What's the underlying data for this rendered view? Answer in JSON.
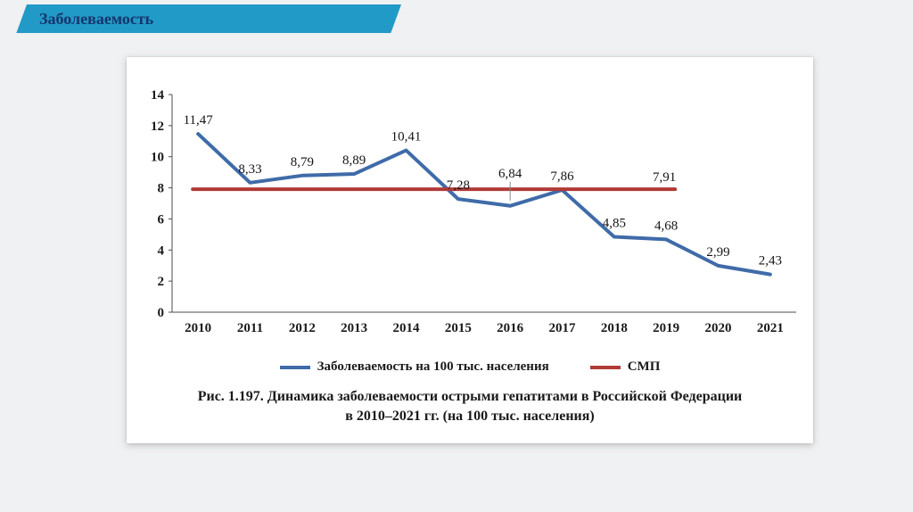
{
  "slide": {
    "title": "Заболеваемость"
  },
  "colors": {
    "banner": "#219ac7",
    "title_text": "#15356e",
    "axis": "#4d4d4d",
    "series_blue": "#3f6ba8",
    "series_red": "#b03a36"
  },
  "chart_data": {
    "type": "line",
    "categories": [
      "2010",
      "2011",
      "2012",
      "2013",
      "2014",
      "2015",
      "2016",
      "2017",
      "2018",
      "2019",
      "2020",
      "2021"
    ],
    "series": [
      {
        "name": "Заболеваемость на 100 тыс. населения",
        "color": "#3f6ba8",
        "values": [
          11.47,
          8.33,
          8.79,
          8.89,
          10.41,
          7.28,
          6.84,
          7.86,
          4.85,
          4.68,
          2.99,
          2.43
        ],
        "labels": [
          "11,47",
          "8,33",
          "8,79",
          "8,89",
          "10,41",
          "7,28",
          "6,84",
          "7,86",
          "4,85",
          "4,68",
          "2,99",
          "2,43"
        ],
        "label_offsets": {
          "6": -32
        }
      },
      {
        "name": "СМП",
        "color": "#b03a36",
        "value": 7.91,
        "label": "7,91",
        "span": [
          "2010",
          "2019"
        ]
      }
    ],
    "ylim": [
      0,
      14
    ],
    "ytick_step": 2,
    "grid": false,
    "legend_position": "bottom"
  },
  "caption": {
    "label": "Рис. 1.197.",
    "line1": "Динамика заболеваемости острыми гепатитами в Российской Федерации",
    "line2": "в 2010–2021 гг. (на 100 тыс. населения)"
  }
}
